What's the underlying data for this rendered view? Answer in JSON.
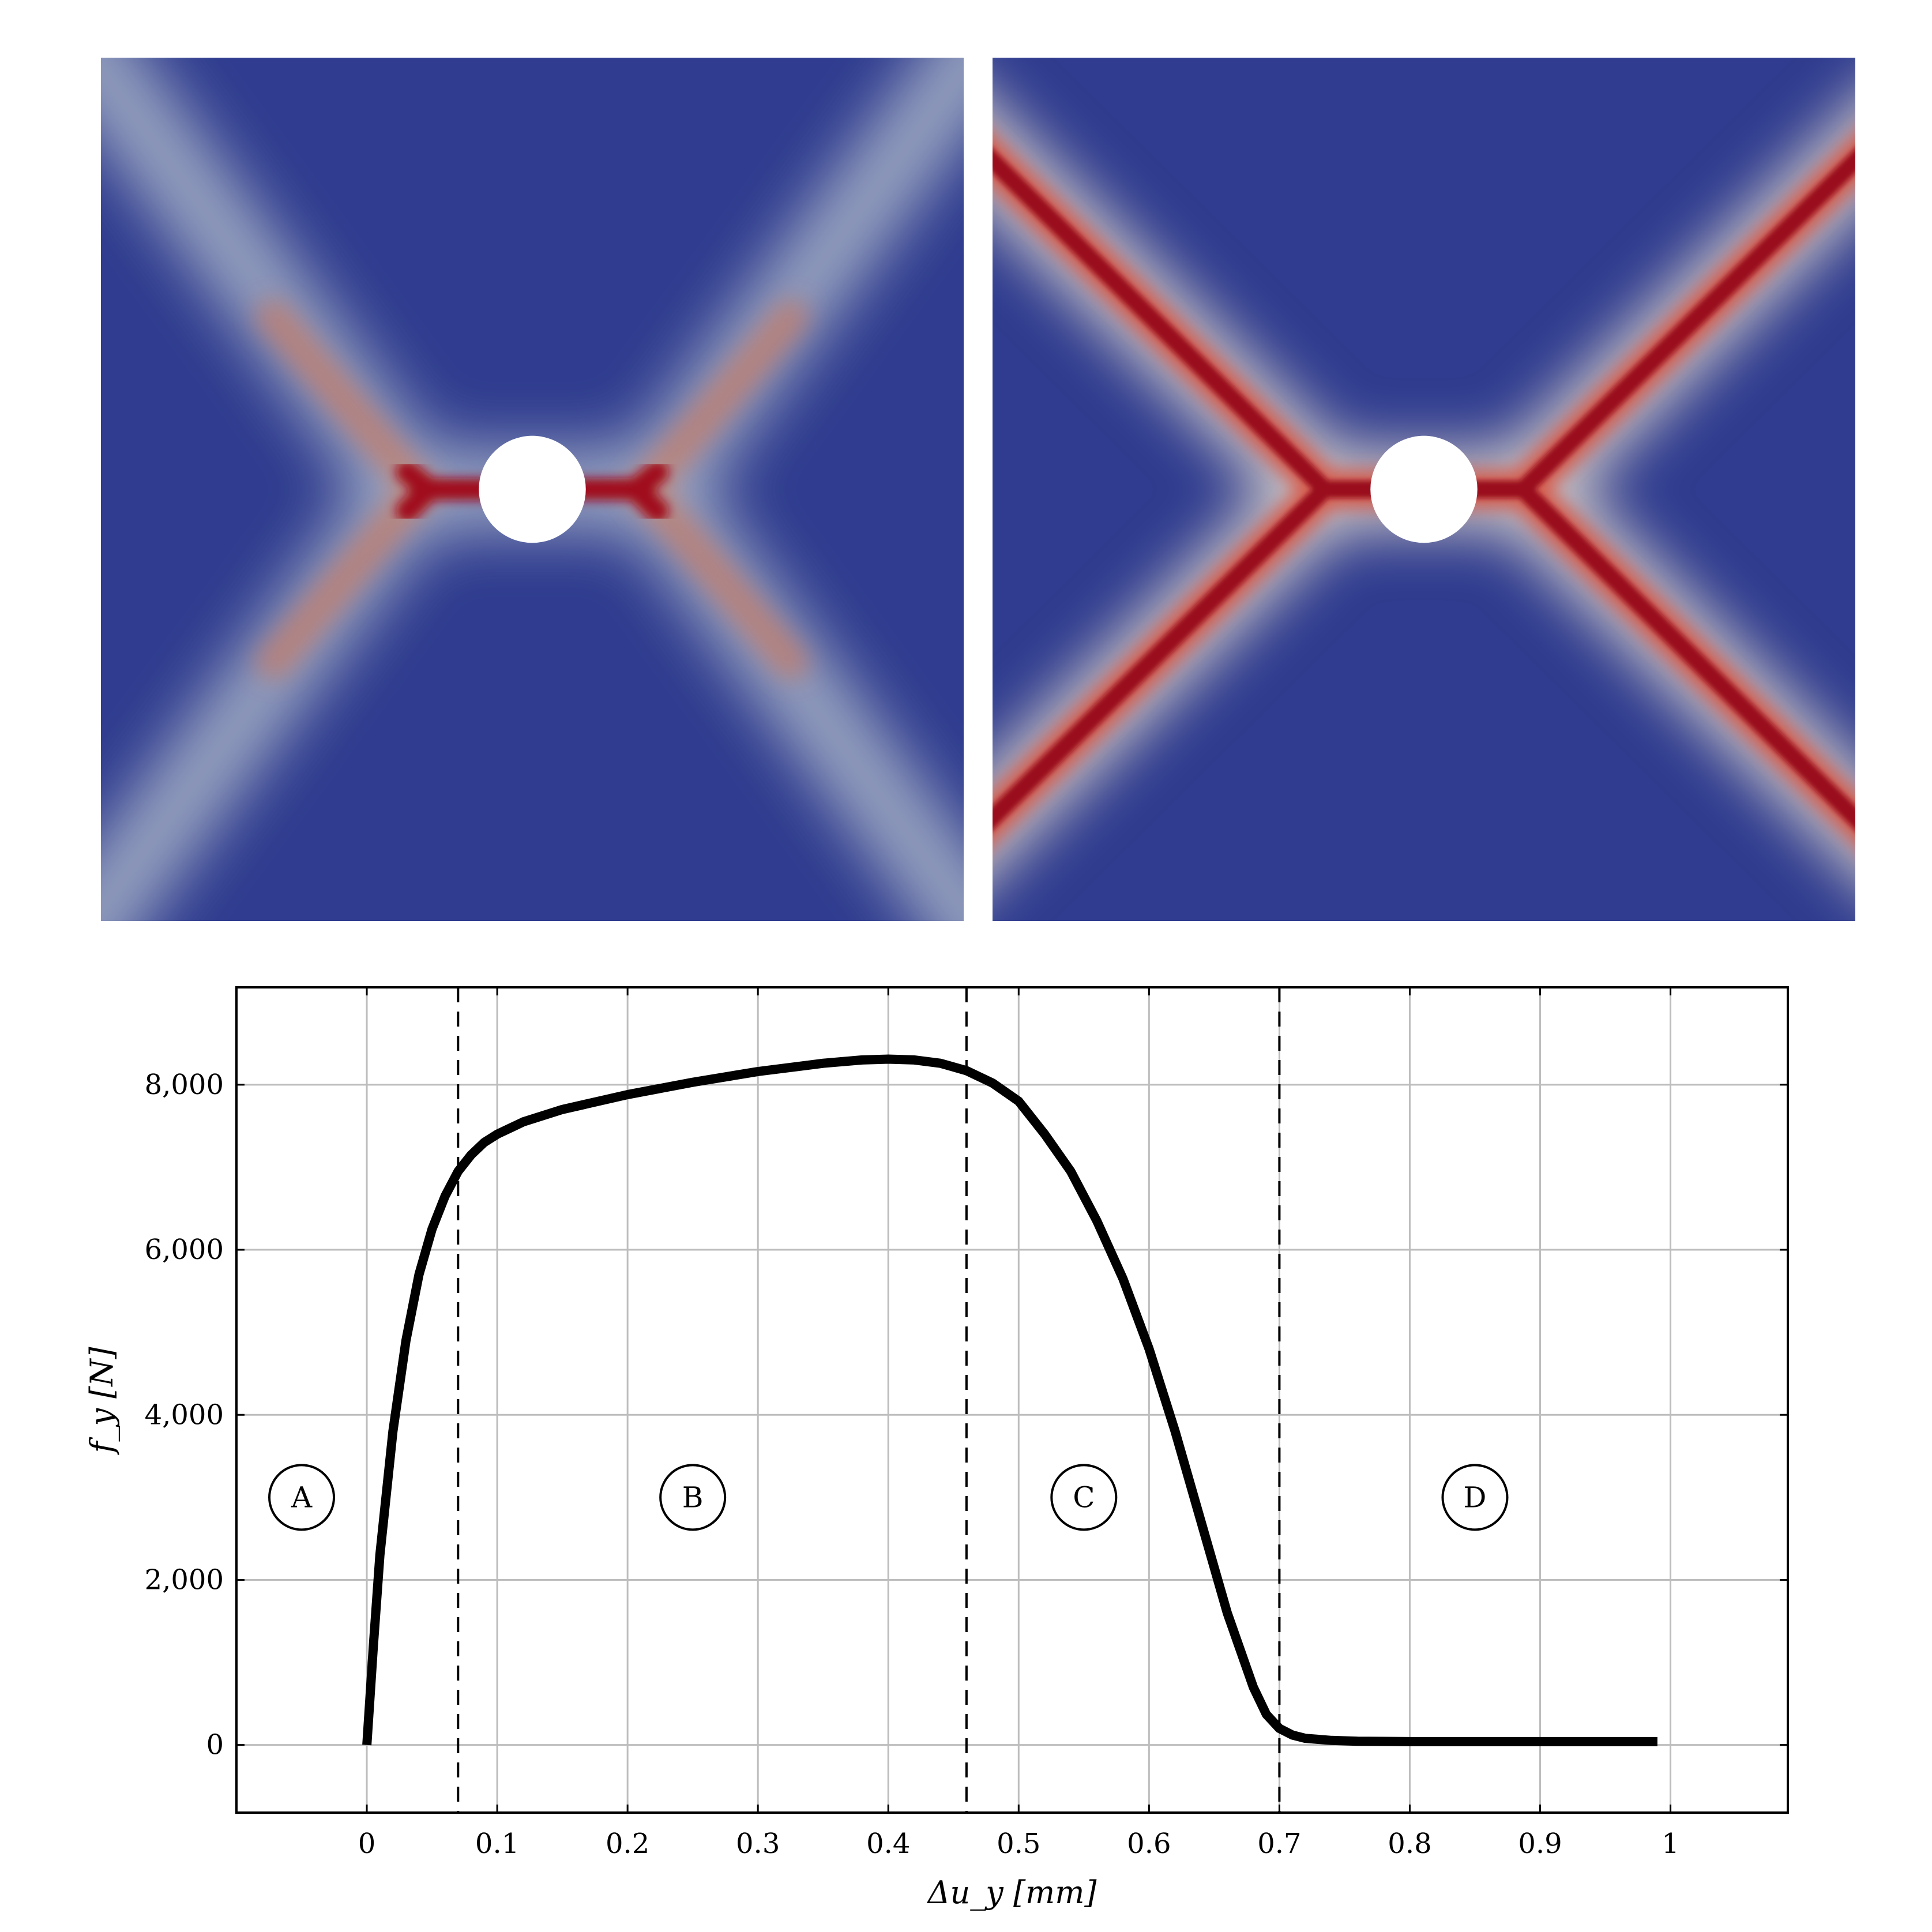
{
  "panels": [
    {
      "name": "damage-field-left",
      "background": "#2f3c8f",
      "band_outer": "#a9b3c7",
      "band_core": "#d9734e",
      "hole": "#ffffff",
      "intensity": 0.55
    },
    {
      "name": "damage-field-right",
      "background": "#2f3c8f",
      "band_outer": "#c9c3c4",
      "band_core": "#9a0f1e",
      "hole": "#ffffff",
      "intensity": 1.0
    }
  ],
  "chart_data": {
    "type": "line",
    "title": "",
    "xlabel": "Δu_y [mm]",
    "ylabel": "f_y [N]",
    "xlim": [
      -0.1,
      1.09
    ],
    "ylim": [
      -820,
      9180
    ],
    "x_ticks": [
      0,
      0.1,
      0.2,
      0.3,
      0.4,
      0.5,
      0.6,
      0.7,
      0.8,
      0.9,
      1
    ],
    "x_tick_labels": [
      "0",
      "0.1",
      "0.2",
      "0.3",
      "0.4",
      "0.5",
      "0.6",
      "0.7",
      "0.8",
      "0.9",
      "1"
    ],
    "y_ticks": [
      0,
      2000,
      4000,
      6000,
      8000
    ],
    "y_tick_labels": [
      "0",
      "2,000",
      "4,000",
      "6,000",
      "8,000"
    ],
    "grid": true,
    "series": [
      {
        "color": "#000000",
        "x": [
          0,
          0.005,
          0.01,
          0.02,
          0.03,
          0.04,
          0.05,
          0.06,
          0.07,
          0.08,
          0.09,
          0.1,
          0.12,
          0.15,
          0.2,
          0.25,
          0.3,
          0.35,
          0.38,
          0.4,
          0.42,
          0.44,
          0.46,
          0.48,
          0.5,
          0.52,
          0.54,
          0.56,
          0.58,
          0.6,
          0.62,
          0.64,
          0.66,
          0.68,
          0.69,
          0.7,
          0.71,
          0.72,
          0.74,
          0.76,
          0.8,
          0.9,
          0.99
        ],
        "y": [
          0,
          1200,
          2300,
          3800,
          4900,
          5700,
          6250,
          6650,
          6950,
          7150,
          7300,
          7400,
          7550,
          7700,
          7880,
          8030,
          8160,
          8260,
          8300,
          8310,
          8300,
          8260,
          8170,
          8020,
          7800,
          7400,
          6950,
          6350,
          5650,
          4800,
          3800,
          2700,
          1600,
          700,
          370,
          200,
          120,
          80,
          55,
          45,
          40,
          40,
          40
        ]
      }
    ],
    "vlines": [
      0.07,
      0.46,
      0.7
    ],
    "regions": [
      {
        "label": "A",
        "x": -0.05,
        "y": 3000
      },
      {
        "label": "B",
        "x": 0.25,
        "y": 3000
      },
      {
        "label": "C",
        "x": 0.55,
        "y": 3000
      },
      {
        "label": "D",
        "x": 0.85,
        "y": 3000
      }
    ]
  }
}
